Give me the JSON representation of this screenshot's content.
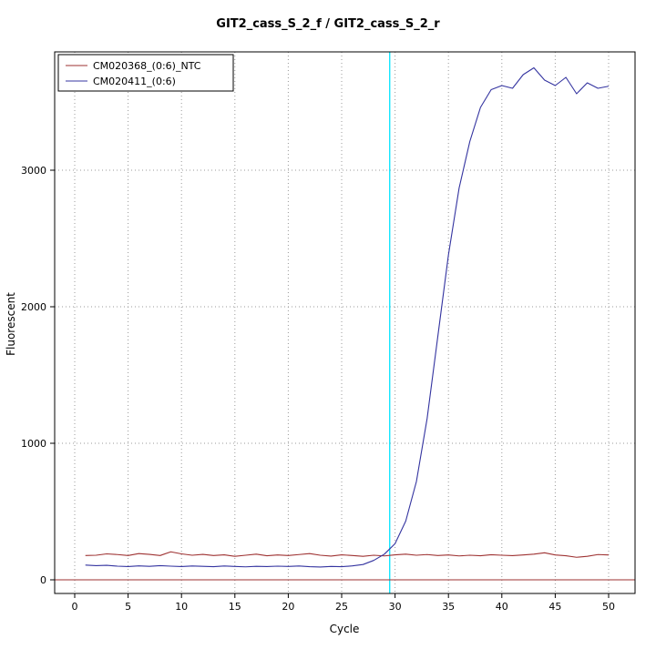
{
  "chart_data": {
    "type": "line",
    "title": "GIT2_cass_S_2_f / GIT2_cass_S_2_r",
    "xlabel": "Cycle",
    "ylabel": "Fluorescent",
    "xlim": [
      0,
      50
    ],
    "ylim": [
      0,
      3870
    ],
    "xticks": [
      0,
      5,
      10,
      15,
      20,
      25,
      30,
      35,
      40,
      45,
      50
    ],
    "yticks": [
      0,
      1000,
      2000,
      3000
    ],
    "grid": true,
    "grid_color": "#999999",
    "legend_position": "top-left",
    "threshold_cycle": 29.5,
    "threshold_color": "#00e5ff",
    "baseline_value": 0,
    "baseline_color": "#9e3232",
    "cycles": [
      1,
      2,
      3,
      4,
      5,
      6,
      7,
      8,
      9,
      10,
      11,
      12,
      13,
      14,
      15,
      16,
      17,
      18,
      19,
      20,
      21,
      22,
      23,
      24,
      25,
      26,
      27,
      28,
      29,
      30,
      31,
      32,
      33,
      34,
      35,
      36,
      37,
      38,
      39,
      40,
      41,
      42,
      43,
      44,
      45,
      46,
      47,
      48,
      49,
      50
    ],
    "series": [
      {
        "name": "CM020368_(0:6)_NTC",
        "color": "#9e3232",
        "values": [
          178,
          180,
          190,
          185,
          178,
          192,
          186,
          178,
          205,
          190,
          180,
          186,
          178,
          183,
          172,
          180,
          188,
          176,
          182,
          178,
          185,
          192,
          180,
          174,
          183,
          178,
          172,
          180,
          175,
          183,
          188,
          180,
          185,
          178,
          182,
          175,
          180,
          176,
          184,
          180,
          177,
          182,
          188,
          198,
          182,
          176,
          165,
          172,
          185,
          182
        ]
      },
      {
        "name": "CM020411_(0:6)",
        "color": "#3434a0",
        "values": [
          108,
          104,
          106,
          100,
          97,
          102,
          99,
          104,
          100,
          97,
          101,
          99,
          96,
          101,
          98,
          95,
          99,
          97,
          100,
          98,
          101,
          96,
          94,
          98,
          96,
          102,
          112,
          142,
          188,
          265,
          430,
          720,
          1180,
          1780,
          2380,
          2870,
          3210,
          3460,
          3590,
          3620,
          3600,
          3700,
          3750,
          3660,
          3620,
          3680,
          3560,
          3640,
          3600,
          3615
        ]
      }
    ]
  }
}
